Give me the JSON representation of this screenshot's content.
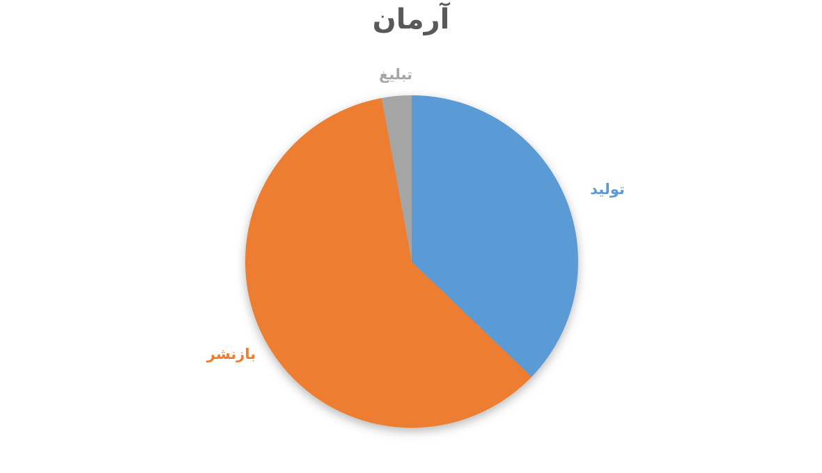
{
  "chart_data": {
    "type": "pie",
    "title": "آرمان",
    "categories": [
      "تولید",
      "بازنشر",
      "تبلیغ"
    ],
    "values": [
      37.2,
      59.9,
      2.9
    ],
    "colors": [
      "#5B9BD5",
      "#ED7D31",
      "#A5A5A5"
    ],
    "title_color": "#595959",
    "background_color": "#ffffff",
    "start_angle_deg": 0,
    "direction": "clockwise",
    "legend_position": "none",
    "label_style": "category-names-outside, colored to match slice"
  }
}
